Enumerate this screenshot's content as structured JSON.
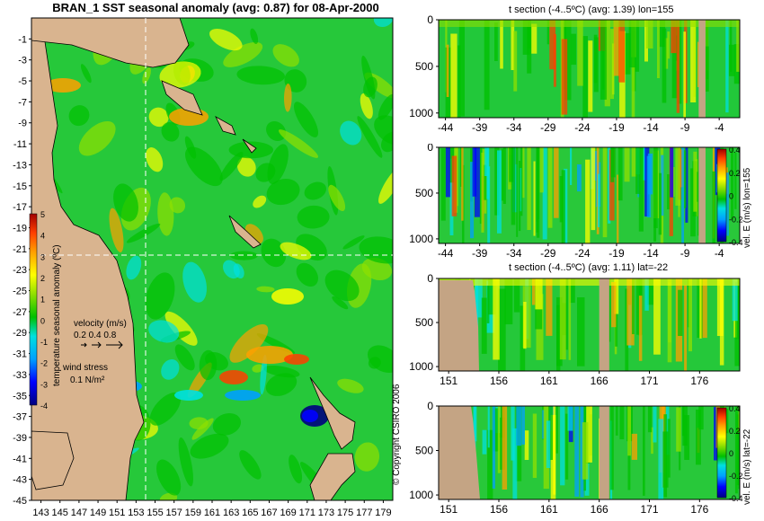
{
  "map": {
    "title": "BRAN_1  SST seasonal anomaly (avg: 0.87) for 08-Apr-2000",
    "colorbar_label": "temperature seasonal anomaly (ºC)",
    "velocity_label": "velocity (m/s)",
    "velocity_scale": "0.2 0.4 0.8",
    "wind_label": "wind stress",
    "wind_scale": "0.1 N/m²"
  },
  "copyright": "© Copyright CSIRO 2006",
  "colors": {
    "land": "#d9b48f",
    "section_land": "#c4a484",
    "crosshair": "#ffffff",
    "scale": [
      "#000080",
      "#0000ff",
      "#00a0ff",
      "#00e0e0",
      "#00c000",
      "#90e000",
      "#ffff00",
      "#ffa000",
      "#ff4000",
      "#a00000"
    ]
  },
  "panels": {
    "p1": {
      "title": "t section (-4..5ºC) (avg: 1.39) lon=155"
    },
    "p2": {
      "side_label": "vel. E (m/s) lon=155"
    },
    "p3": {
      "title": "t section (-4..5ºC) (avg: 1.11) lat=-22"
    },
    "p4": {
      "side_label": "vel. E (m/s) lat=-22"
    }
  },
  "chart_data": [
    {
      "type": "heatmap",
      "title": "BRAN_1  SST seasonal anomaly (avg: 0.87) for 08-Apr-2000",
      "x_ticks": [
        "143",
        "145",
        "147",
        "149",
        "151",
        "153",
        "155",
        "157",
        "159",
        "161",
        "163",
        "165",
        "167",
        "169",
        "171",
        "173",
        "175",
        "177",
        "179"
      ],
      "y_ticks": [
        "-1",
        "-3",
        "-5",
        "-7",
        "-9",
        "-11",
        "-13",
        "-15",
        "-17",
        "-19",
        "-21",
        "-23",
        "-25",
        "-27",
        "-29",
        "-31",
        "-33",
        "-35",
        "-37",
        "-39",
        "-41",
        "-43",
        "-45"
      ],
      "xlim": [
        142,
        180
      ],
      "ylim": [
        -45,
        1
      ],
      "colorbar": {
        "ticks": [
          "5",
          "4",
          "3",
          "2",
          "1",
          "0",
          "-1",
          "-2",
          "-3",
          "-4"
        ],
        "range": [
          -4,
          5
        ]
      },
      "crosshair": {
        "lon": 155,
        "lat": -22
      }
    },
    {
      "type": "heatmap",
      "title": "t section (-4..5ºC) (avg: 1.39) lon=155",
      "x_ticks": [
        "-44",
        "-39",
        "-34",
        "-29",
        "-24",
        "-19",
        "-14",
        "-9",
        "-4"
      ],
      "y_ticks": [
        "0",
        "500",
        "1000"
      ],
      "xlim": [
        -45,
        -1
      ],
      "ylim": [
        1050,
        0
      ]
    },
    {
      "type": "heatmap",
      "x_ticks": [
        "-44",
        "-39",
        "-34",
        "-29",
        "-24",
        "-19",
        "-14",
        "-9",
        "-4"
      ],
      "y_ticks": [
        "0",
        "500",
        "1000"
      ],
      "xlim": [
        -45,
        -1
      ],
      "ylim": [
        1050,
        0
      ],
      "colorbar": {
        "ticks": [
          "0.4",
          "0.2",
          "0",
          "-0.2",
          "-0.4"
        ],
        "range": [
          -0.4,
          0.4
        ]
      }
    },
    {
      "type": "heatmap",
      "title": "t section (-4..5ºC) (avg: 1.11) lat=-22",
      "x_ticks": [
        "151",
        "156",
        "161",
        "166",
        "171",
        "176"
      ],
      "y_ticks": [
        "0",
        "500",
        "1000"
      ],
      "xlim": [
        150,
        180
      ],
      "ylim": [
        1050,
        0
      ]
    },
    {
      "type": "heatmap",
      "x_ticks": [
        "151",
        "156",
        "161",
        "166",
        "171",
        "176"
      ],
      "y_ticks": [
        "0",
        "500",
        "1000"
      ],
      "xlim": [
        150,
        180
      ],
      "ylim": [
        1050,
        0
      ],
      "colorbar": {
        "ticks": [
          "0.4",
          "0.2",
          "0",
          "-0.2",
          "-0.4"
        ],
        "range": [
          -0.4,
          0.4
        ]
      }
    }
  ]
}
